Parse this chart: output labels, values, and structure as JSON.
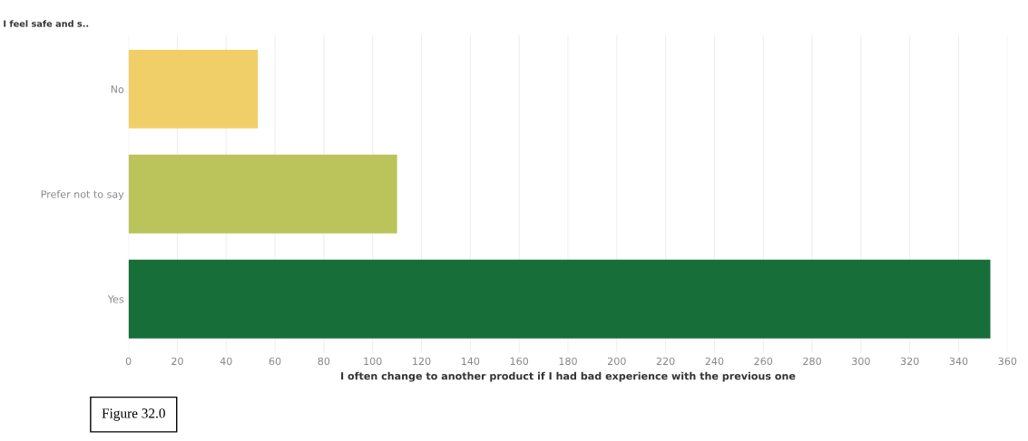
{
  "chart_data": {
    "type": "bar",
    "orientation": "horizontal",
    "ylabel": "I feel safe and s..",
    "xlabel": "I often change to another product if I had bad experience with the previous one",
    "categories": [
      "No",
      "Prefer not to say",
      "Yes"
    ],
    "values": [
      53,
      110,
      353
    ],
    "colors": [
      "#f1cf68",
      "#bac45a",
      "#186e38"
    ],
    "xlim": [
      0,
      360
    ],
    "xticks": [
      0,
      20,
      40,
      60,
      80,
      100,
      120,
      140,
      160,
      180,
      200,
      220,
      240,
      260,
      280,
      300,
      320,
      340,
      360
    ],
    "grid": "x",
    "annotations": [
      "Figure 32.0"
    ]
  }
}
